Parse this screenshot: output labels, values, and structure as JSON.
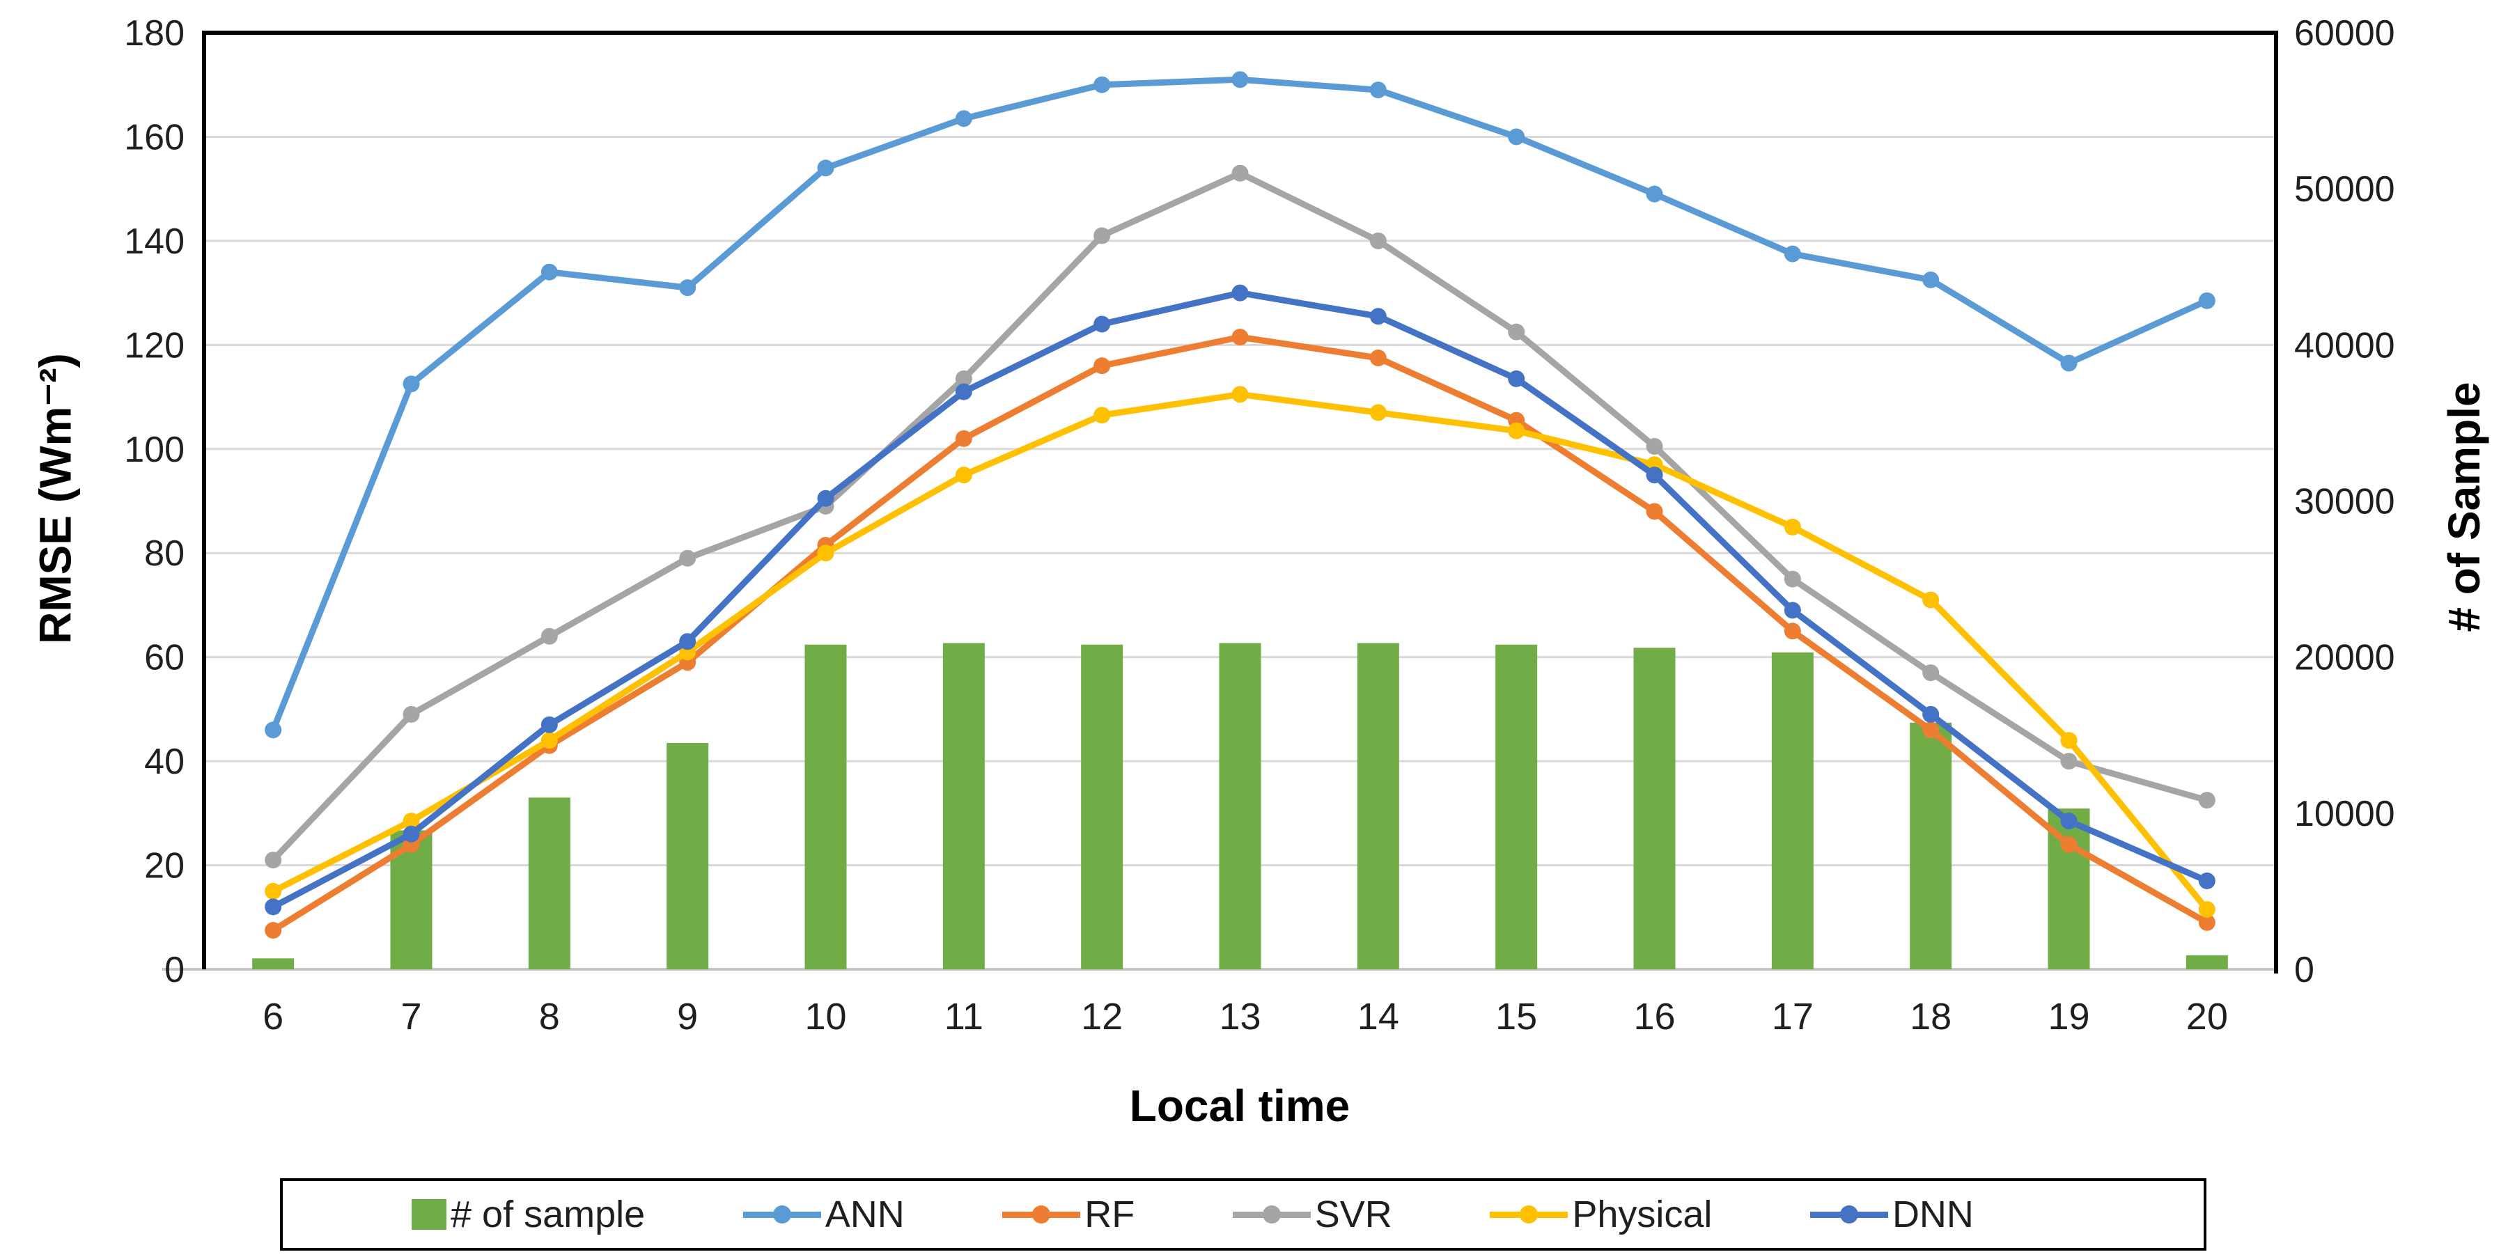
{
  "chart_data": {
    "type": "bar+line combo",
    "title": "",
    "categories": [
      6,
      7,
      8,
      9,
      10,
      11,
      12,
      13,
      14,
      15,
      16,
      17,
      18,
      19,
      20
    ],
    "x_axis": {
      "title": "Local time"
    },
    "left_axis": {
      "title": "RMSE (Wm⁻²)",
      "min": 0,
      "max": 180,
      "step": 20
    },
    "right_axis": {
      "title": "# of Sample",
      "min": 0,
      "max": 60000,
      "step": 10000
    },
    "grid": "horizontal",
    "bar_series": {
      "name": "# of sample",
      "axis": "right",
      "color": "#70AD47",
      "values": [
        700,
        8900,
        11000,
        14500,
        20800,
        20900,
        20800,
        20900,
        20900,
        20800,
        20600,
        20300,
        15800,
        10300,
        900
      ]
    },
    "series": [
      {
        "name": "ANN",
        "color": "#5B9BD5",
        "axis": "left",
        "values": [
          46,
          112.5,
          134,
          131,
          154,
          163.5,
          170,
          171,
          169,
          160,
          149,
          137.5,
          132.5,
          116.5,
          128.5
        ]
      },
      {
        "name": "RF",
        "color": "#ED7D31",
        "axis": "left",
        "values": [
          7.5,
          24,
          43,
          59,
          81.5,
          102,
          116,
          121.5,
          117.5,
          105.5,
          88,
          65,
          46,
          24,
          9
        ]
      },
      {
        "name": "SVR",
        "color": "#A5A5A5",
        "axis": "left",
        "values": [
          21,
          49,
          64,
          79,
          89,
          113.5,
          141,
          153,
          140,
          122.5,
          100.5,
          75,
          57,
          40,
          32.5
        ]
      },
      {
        "name": "Physical",
        "color": "#FFC000",
        "axis": "left",
        "values": [
          15,
          28.5,
          44,
          61,
          80,
          95,
          106.5,
          110.5,
          107,
          103.5,
          97,
          85,
          71,
          44,
          11.5
        ]
      },
      {
        "name": "DNN",
        "color": "#4472C4",
        "axis": "left",
        "values": [
          12,
          26,
          47,
          63,
          90.5,
          111,
          124,
          130,
          125.5,
          113.5,
          95,
          69,
          49,
          28.5,
          17
        ]
      }
    ],
    "legend": {
      "position": "bottom",
      "items": [
        {
          "label": "# of sample",
          "marker": "square",
          "color": "#70AD47"
        },
        {
          "label": "ANN",
          "marker": "line-dot",
          "color": "#5B9BD5"
        },
        {
          "label": "RF",
          "marker": "line-dot",
          "color": "#ED7D31"
        },
        {
          "label": "SVR",
          "marker": "line-dot",
          "color": "#A5A5A5"
        },
        {
          "label": "Physical",
          "marker": "line-dot",
          "color": "#FFC000"
        },
        {
          "label": "DNN",
          "marker": "line-dot",
          "color": "#4472C4"
        }
      ]
    },
    "style": {
      "gridline_color": "#D9D9D9",
      "baseline_color": "#C6C6C6",
      "plot_border_color": "#000000",
      "tick_label_color": "#1f1f1f"
    }
  }
}
